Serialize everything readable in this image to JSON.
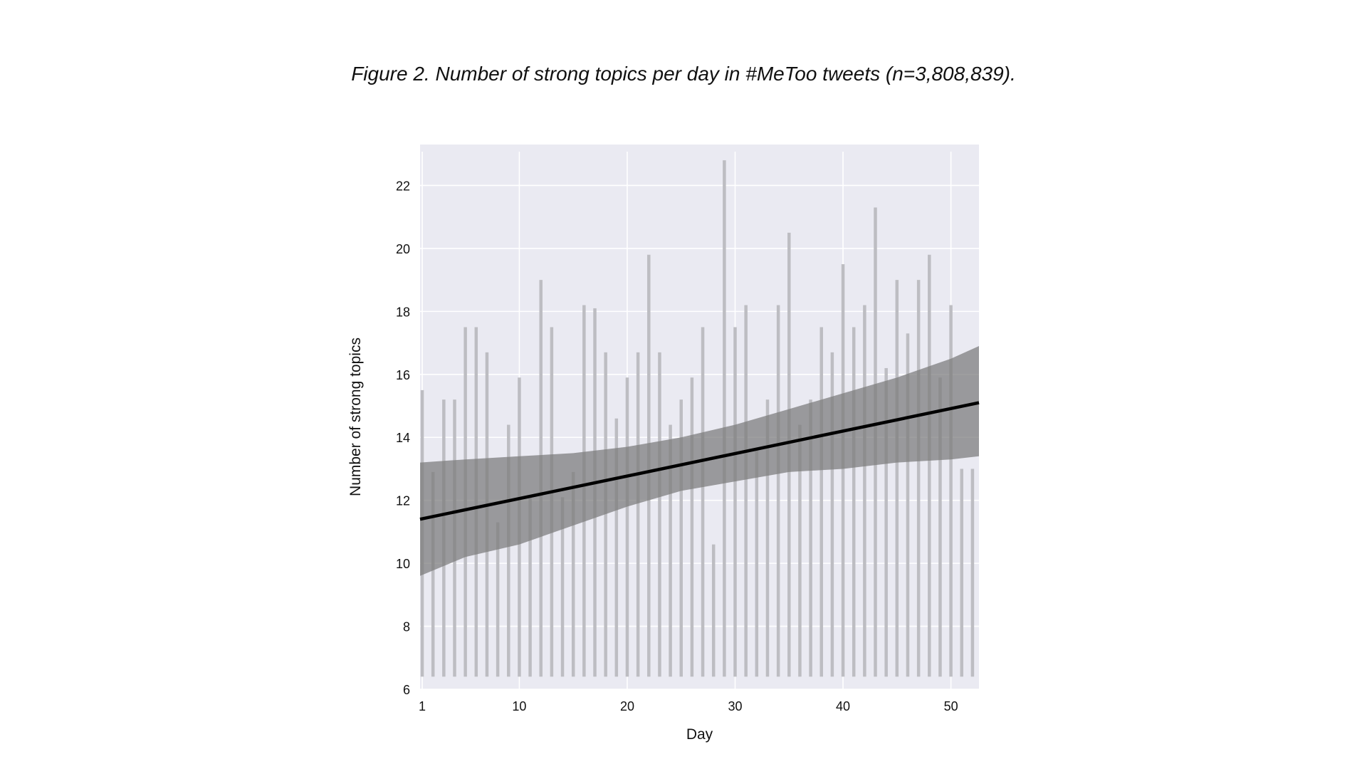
{
  "caption": "Figure 2. Number of strong topics per day in #MeToo tweets (n=3,808,839).",
  "chart_data": {
    "type": "bar",
    "xlabel": "Day",
    "ylabel": "Number of strong topics",
    "xlim": [
      0.8,
      52.6
    ],
    "ylim": [
      6,
      23.3
    ],
    "x_ticks": [
      1,
      10,
      20,
      30,
      40,
      50
    ],
    "y_ticks": [
      6,
      8,
      10,
      12,
      14,
      16,
      18,
      20,
      22
    ],
    "grid": true,
    "bar_baseline": 6.4,
    "x": [
      1,
      2,
      3,
      4,
      5,
      6,
      7,
      8,
      9,
      10,
      11,
      12,
      13,
      14,
      15,
      16,
      17,
      18,
      19,
      20,
      21,
      22,
      23,
      24,
      25,
      26,
      27,
      28,
      29,
      30,
      31,
      32,
      33,
      34,
      35,
      36,
      37,
      38,
      39,
      40,
      41,
      42,
      43,
      44,
      45,
      46,
      47,
      48,
      49,
      50,
      51,
      52
    ],
    "values": [
      15.5,
      12.9,
      15.2,
      15.2,
      17.5,
      17.5,
      16.7,
      11.3,
      14.4,
      15.9,
      12.1,
      19.0,
      17.5,
      12.1,
      12.9,
      18.2,
      18.1,
      16.7,
      14.6,
      15.9,
      16.7,
      19.8,
      16.7,
      14.4,
      15.2,
      15.9,
      17.5,
      10.6,
      22.8,
      17.5,
      18.2,
      13.6,
      15.2,
      18.2,
      20.5,
      14.4,
      15.2,
      17.5,
      16.7,
      19.5,
      17.5,
      18.2,
      21.3,
      16.2,
      19.0,
      17.3,
      19.0,
      19.8,
      15.9,
      18.2,
      13.0,
      13.0
    ],
    "trend": {
      "x": [
        0.8,
        52.6
      ],
      "y": [
        11.4,
        15.1
      ]
    },
    "ci_band": {
      "x": [
        0.8,
        5,
        10,
        15,
        20,
        25,
        30,
        35,
        40,
        45,
        50,
        52.6
      ],
      "lower": [
        9.6,
        10.2,
        10.6,
        11.2,
        11.8,
        12.3,
        12.6,
        12.9,
        13.0,
        13.2,
        13.3,
        13.4
      ],
      "upper": [
        13.2,
        13.3,
        13.4,
        13.5,
        13.7,
        14.0,
        14.4,
        14.9,
        15.4,
        15.9,
        16.5,
        16.9
      ]
    },
    "colors": {
      "plot_background": "#eaeaf2",
      "grid": "#ffffff",
      "bars": "#bdbdc2",
      "ci_band": "#7a7a7a",
      "trend_line": "#000000"
    }
  }
}
